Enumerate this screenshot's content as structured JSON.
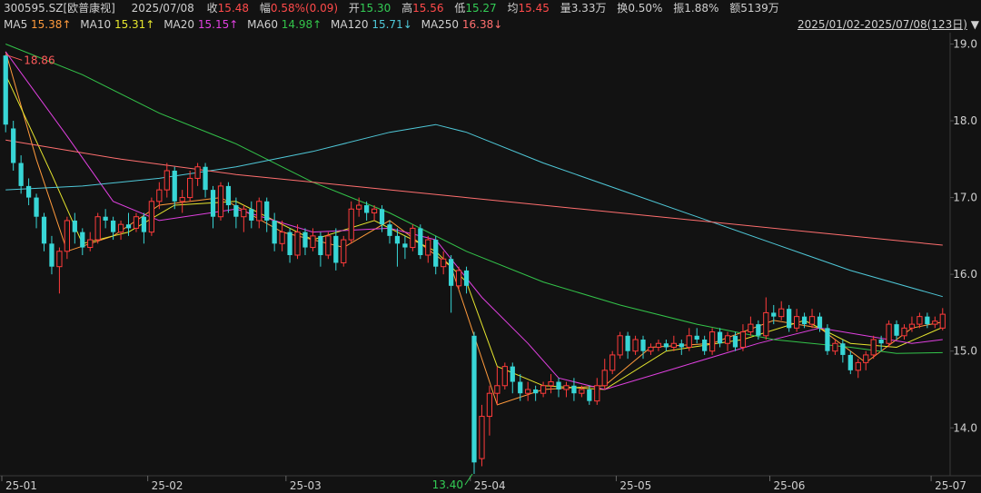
{
  "header": {
    "code": "300595.SZ[欧普康视]",
    "date": "2025/07/08",
    "close_label": "收",
    "close": "15.48",
    "change_label": "幅",
    "change": "0.58%(0.09)",
    "open_label": "开",
    "open": "15.30",
    "high_label": "高",
    "high": "15.56",
    "low_label": "低",
    "low": "15.27",
    "avg_label": "均",
    "avg": "15.45",
    "volume_label": "量",
    "volume": "3.33万",
    "turnover_label": "换",
    "turnover": "0.50%",
    "amplitude_label": "振",
    "amplitude": "1.88%",
    "amount_label": "额",
    "amount": "5139万"
  },
  "ma_legend": [
    {
      "label": "MA5",
      "value": "15.38↑",
      "color": "#ff9a3c"
    },
    {
      "label": "MA10",
      "value": "15.31↑",
      "color": "#e6e62e"
    },
    {
      "label": "MA20",
      "value": "15.15↑",
      "color": "#e040e0"
    },
    {
      "label": "MA60",
      "value": "14.98↑",
      "color": "#33c44a"
    },
    {
      "label": "MA120",
      "value": "15.71↓",
      "color": "#4fc8d8"
    },
    {
      "label": "MA250",
      "value": "16.38↓",
      "color": "#ff6f6f"
    }
  ],
  "range": {
    "text": "2025/01/02-2025/07/08(123日)",
    "arrow": "▼"
  },
  "colors": {
    "up": "#ff3b3b",
    "down": "#38d6d6",
    "grid": "#2a2a2a"
  },
  "chart_data": {
    "type": "candlestick",
    "ylim": [
      13.4,
      19.1
    ],
    "y_ticks": [
      "19.0",
      "18.0",
      "17.0",
      "16.0",
      "15.0",
      "14.0"
    ],
    "y_tick_values": [
      19.0,
      18.0,
      17.0,
      16.0,
      15.0,
      14.0
    ],
    "x_ticks": [
      "25-01",
      "25-02",
      "25-03",
      "25-04",
      "25-05",
      "25-06",
      "25-07"
    ],
    "x_tick_index": [
      0,
      19,
      37,
      61,
      80,
      100,
      121
    ],
    "high_label": "18.86",
    "low_label": "13.40",
    "high_index": 0,
    "low_index": 61,
    "candles": [
      [
        18.85,
        17.95,
        18.86,
        17.85
      ],
      [
        17.9,
        17.45,
        18.0,
        17.35
      ],
      [
        17.45,
        17.15,
        17.55,
        17.05
      ],
      [
        17.15,
        17.0,
        17.25,
        16.9
      ],
      [
        17.0,
        16.75,
        17.05,
        16.6
      ],
      [
        16.75,
        16.4,
        16.8,
        16.3
      ],
      [
        16.4,
        16.1,
        16.5,
        16.0
      ],
      [
        16.1,
        16.3,
        16.35,
        15.75
      ],
      [
        16.3,
        16.7,
        16.75,
        16.2
      ],
      [
        16.7,
        16.55,
        16.8,
        16.4
      ],
      [
        16.55,
        16.35,
        16.6,
        16.25
      ],
      [
        16.35,
        16.45,
        16.55,
        16.3
      ],
      [
        16.45,
        16.75,
        16.8,
        16.4
      ],
      [
        16.75,
        16.7,
        16.85,
        16.6
      ],
      [
        16.7,
        16.55,
        16.75,
        16.45
      ],
      [
        16.55,
        16.65,
        16.7,
        16.45
      ],
      [
        16.65,
        16.6,
        16.8,
        16.5
      ],
      [
        16.6,
        16.75,
        16.8,
        16.55
      ],
      [
        16.75,
        16.55,
        16.8,
        16.4
      ],
      [
        16.55,
        16.95,
        17.0,
        16.5
      ],
      [
        16.95,
        17.1,
        17.2,
        16.85
      ],
      [
        17.1,
        17.35,
        17.45,
        17.0
      ],
      [
        17.35,
        16.95,
        17.4,
        16.85
      ],
      [
        16.95,
        17.0,
        17.1,
        16.8
      ],
      [
        17.0,
        17.25,
        17.35,
        16.95
      ],
      [
        17.25,
        17.4,
        17.45,
        17.15
      ],
      [
        17.4,
        17.1,
        17.45,
        17.0
      ],
      [
        17.1,
        16.75,
        17.15,
        16.6
      ],
      [
        16.75,
        17.15,
        17.2,
        16.7
      ],
      [
        17.15,
        16.9,
        17.2,
        16.8
      ],
      [
        16.9,
        16.75,
        17.0,
        16.6
      ],
      [
        16.75,
        16.85,
        16.9,
        16.55
      ],
      [
        16.85,
        16.7,
        16.95,
        16.6
      ],
      [
        16.7,
        16.95,
        17.0,
        16.6
      ],
      [
        16.95,
        16.7,
        17.0,
        16.55
      ],
      [
        16.7,
        16.4,
        16.8,
        16.3
      ],
      [
        16.4,
        16.55,
        16.7,
        16.3
      ],
      [
        16.55,
        16.25,
        16.6,
        16.15
      ],
      [
        16.25,
        16.55,
        16.65,
        16.2
      ],
      [
        16.55,
        16.35,
        16.6,
        16.25
      ],
      [
        16.35,
        16.5,
        16.6,
        16.3
      ],
      [
        16.5,
        16.25,
        16.55,
        16.1
      ],
      [
        16.25,
        16.5,
        16.55,
        16.2
      ],
      [
        16.5,
        16.15,
        16.6,
        16.05
      ],
      [
        16.15,
        16.45,
        16.5,
        16.1
      ],
      [
        16.45,
        16.85,
        16.95,
        16.4
      ],
      [
        16.85,
        16.9,
        17.0,
        16.75
      ],
      [
        16.9,
        16.8,
        16.95,
        16.7
      ],
      [
        16.8,
        16.85,
        16.9,
        16.7
      ],
      [
        16.85,
        16.65,
        16.9,
        16.55
      ],
      [
        16.65,
        16.5,
        16.7,
        16.4
      ],
      [
        16.5,
        16.4,
        16.6,
        16.1
      ],
      [
        16.4,
        16.35,
        16.5,
        16.2
      ],
      [
        16.35,
        16.6,
        16.65,
        16.3
      ],
      [
        16.6,
        16.25,
        16.65,
        16.2
      ],
      [
        16.25,
        16.45,
        16.5,
        16.15
      ],
      [
        16.45,
        16.1,
        16.5,
        16.0
      ],
      [
        16.1,
        16.2,
        16.3,
        16.0
      ],
      [
        16.2,
        15.85,
        16.25,
        15.5
      ],
      [
        15.85,
        16.05,
        16.1,
        15.8
      ],
      [
        16.05,
        15.85,
        16.1,
        15.75
      ],
      [
        15.2,
        13.55,
        15.25,
        13.4
      ],
      [
        13.6,
        14.15,
        14.3,
        13.5
      ],
      [
        14.15,
        14.45,
        14.55,
        13.9
      ],
      [
        14.45,
        14.55,
        14.8,
        14.3
      ],
      [
        14.55,
        14.8,
        14.85,
        14.5
      ],
      [
        14.8,
        14.6,
        14.85,
        14.45
      ],
      [
        14.6,
        14.45,
        14.7,
        14.35
      ],
      [
        14.45,
        14.5,
        14.6,
        14.35
      ],
      [
        14.5,
        14.45,
        14.55,
        14.35
      ],
      [
        14.45,
        14.55,
        14.6,
        14.4
      ],
      [
        14.55,
        14.6,
        14.7,
        14.45
      ],
      [
        14.6,
        14.5,
        14.65,
        14.4
      ],
      [
        14.5,
        14.55,
        14.6,
        14.4
      ],
      [
        14.55,
        14.45,
        14.65,
        14.35
      ],
      [
        14.45,
        14.5,
        14.55,
        14.4
      ],
      [
        14.5,
        14.35,
        14.55,
        14.3
      ],
      [
        14.35,
        14.55,
        14.65,
        14.3
      ],
      [
        14.55,
        14.75,
        14.9,
        14.5
      ],
      [
        14.75,
        14.95,
        15.0,
        14.7
      ],
      [
        14.95,
        15.2,
        15.25,
        14.9
      ],
      [
        15.2,
        15.0,
        15.25,
        14.9
      ],
      [
        15.0,
        15.15,
        15.2,
        14.95
      ],
      [
        15.15,
        15.0,
        15.2,
        14.9
      ],
      [
        15.0,
        15.05,
        15.1,
        14.95
      ],
      [
        15.05,
        15.1,
        15.15,
        15.0
      ],
      [
        15.1,
        15.05,
        15.15,
        15.0
      ],
      [
        15.05,
        15.1,
        15.2,
        15.0
      ],
      [
        15.1,
        15.05,
        15.15,
        14.95
      ],
      [
        15.05,
        15.2,
        15.3,
        15.0
      ],
      [
        15.2,
        15.15,
        15.3,
        15.1
      ],
      [
        15.15,
        15.0,
        15.2,
        14.95
      ],
      [
        15.0,
        15.25,
        15.3,
        14.95
      ],
      [
        15.25,
        15.1,
        15.3,
        15.05
      ],
      [
        15.1,
        15.2,
        15.25,
        15.0
      ],
      [
        15.2,
        15.05,
        15.25,
        15.0
      ],
      [
        15.05,
        15.25,
        15.35,
        15.0
      ],
      [
        15.25,
        15.35,
        15.45,
        15.2
      ],
      [
        15.35,
        15.2,
        15.4,
        15.15
      ],
      [
        15.2,
        15.5,
        15.7,
        15.15
      ],
      [
        15.5,
        15.45,
        15.6,
        15.35
      ],
      [
        15.45,
        15.55,
        15.65,
        15.4
      ],
      [
        15.55,
        15.3,
        15.6,
        15.25
      ],
      [
        15.3,
        15.45,
        15.55,
        15.25
      ],
      [
        15.45,
        15.35,
        15.5,
        15.3
      ],
      [
        15.35,
        15.45,
        15.55,
        15.3
      ],
      [
        15.45,
        15.3,
        15.5,
        15.25
      ],
      [
        15.3,
        15.0,
        15.35,
        14.95
      ],
      [
        15.0,
        15.1,
        15.15,
        14.95
      ],
      [
        15.1,
        14.95,
        15.15,
        14.85
      ],
      [
        14.95,
        14.75,
        15.0,
        14.7
      ],
      [
        14.75,
        14.85,
        14.9,
        14.65
      ],
      [
        14.85,
        14.95,
        15.0,
        14.75
      ],
      [
        14.95,
        15.15,
        15.2,
        14.9
      ],
      [
        15.15,
        15.1,
        15.2,
        15.0
      ],
      [
        15.1,
        15.35,
        15.4,
        15.05
      ],
      [
        15.35,
        15.2,
        15.4,
        15.15
      ],
      [
        15.2,
        15.3,
        15.35,
        15.15
      ],
      [
        15.3,
        15.35,
        15.45,
        15.25
      ],
      [
        15.35,
        15.45,
        15.5,
        15.3
      ],
      [
        15.45,
        15.35,
        15.5,
        15.3
      ],
      [
        15.35,
        15.39,
        15.45,
        15.3
      ],
      [
        15.3,
        15.48,
        15.56,
        15.27
      ]
    ],
    "ma": {
      "MA5": [
        [
          0,
          18.9
        ],
        [
          4,
          17.5
        ],
        [
          8,
          16.3
        ],
        [
          14,
          16.5
        ],
        [
          20,
          16.9
        ],
        [
          28,
          17.0
        ],
        [
          36,
          16.55
        ],
        [
          44,
          16.35
        ],
        [
          50,
          16.7
        ],
        [
          58,
          16.1
        ],
        [
          61,
          15.2
        ],
        [
          64,
          14.3
        ],
        [
          70,
          14.5
        ],
        [
          78,
          14.55
        ],
        [
          84,
          15.05
        ],
        [
          92,
          15.1
        ],
        [
          100,
          15.4
        ],
        [
          106,
          15.3
        ],
        [
          112,
          14.85
        ],
        [
          118,
          15.3
        ],
        [
          122,
          15.38
        ]
      ],
      "MA10": [
        [
          0,
          18.6
        ],
        [
          6,
          17.3
        ],
        [
          10,
          16.4
        ],
        [
          16,
          16.55
        ],
        [
          22,
          16.9
        ],
        [
          30,
          16.95
        ],
        [
          40,
          16.45
        ],
        [
          48,
          16.7
        ],
        [
          56,
          16.3
        ],
        [
          60,
          15.9
        ],
        [
          64,
          14.8
        ],
        [
          70,
          14.55
        ],
        [
          78,
          14.5
        ],
        [
          86,
          15.0
        ],
        [
          96,
          15.15
        ],
        [
          104,
          15.4
        ],
        [
          110,
          15.1
        ],
        [
          116,
          15.05
        ],
        [
          122,
          15.31
        ]
      ],
      "MA20": [
        [
          0,
          18.9
        ],
        [
          8,
          17.8
        ],
        [
          14,
          16.95
        ],
        [
          20,
          16.7
        ],
        [
          30,
          16.85
        ],
        [
          40,
          16.55
        ],
        [
          50,
          16.6
        ],
        [
          56,
          16.45
        ],
        [
          62,
          15.7
        ],
        [
          68,
          15.1
        ],
        [
          72,
          14.65
        ],
        [
          78,
          14.5
        ],
        [
          88,
          14.8
        ],
        [
          98,
          15.1
        ],
        [
          106,
          15.3
        ],
        [
          112,
          15.2
        ],
        [
          118,
          15.1
        ],
        [
          122,
          15.15
        ]
      ],
      "MA60": [
        [
          0,
          19.0
        ],
        [
          10,
          18.6
        ],
        [
          20,
          18.1
        ],
        [
          30,
          17.7
        ],
        [
          40,
          17.2
        ],
        [
          50,
          16.8
        ],
        [
          60,
          16.3
        ],
        [
          70,
          15.9
        ],
        [
          80,
          15.6
        ],
        [
          90,
          15.35
        ],
        [
          100,
          15.15
        ],
        [
          110,
          15.05
        ],
        [
          116,
          14.97
        ],
        [
          122,
          14.98
        ]
      ],
      "MA120": [
        [
          0,
          17.1
        ],
        [
          10,
          17.15
        ],
        [
          20,
          17.25
        ],
        [
          30,
          17.4
        ],
        [
          40,
          17.6
        ],
        [
          50,
          17.85
        ],
        [
          56,
          17.95
        ],
        [
          60,
          17.85
        ],
        [
          70,
          17.45
        ],
        [
          80,
          17.1
        ],
        [
          90,
          16.75
        ],
        [
          100,
          16.4
        ],
        [
          110,
          16.05
        ],
        [
          122,
          15.71
        ]
      ],
      "MA250": [
        [
          0,
          17.75
        ],
        [
          15,
          17.5
        ],
        [
          30,
          17.3
        ],
        [
          45,
          17.15
        ],
        [
          60,
          17.0
        ],
        [
          75,
          16.85
        ],
        [
          90,
          16.7
        ],
        [
          105,
          16.55
        ],
        [
          122,
          16.38
        ]
      ]
    }
  }
}
